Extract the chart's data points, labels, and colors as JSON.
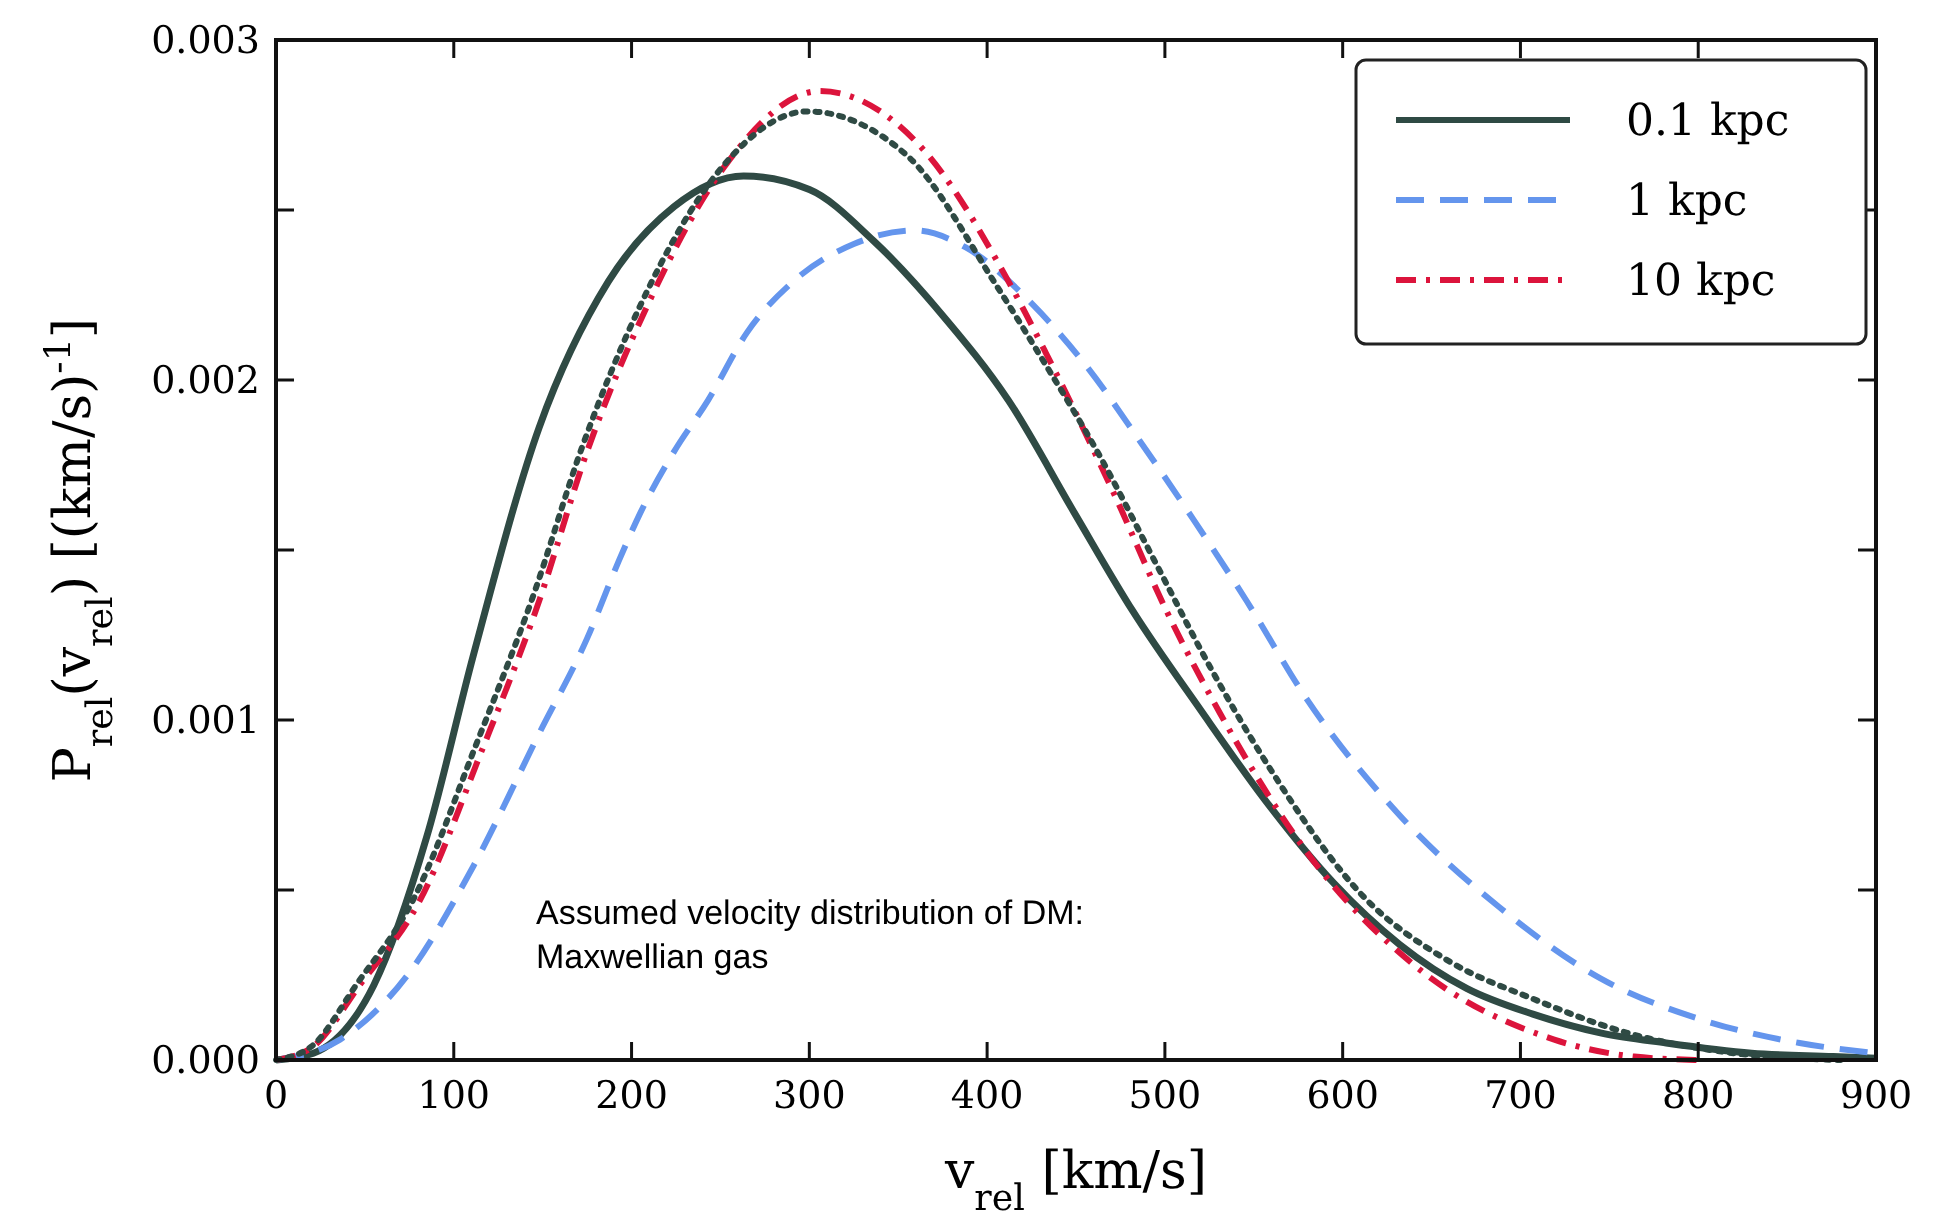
{
  "chart_data": {
    "type": "line",
    "xlabel": "v$_{rel}$ [km/s]",
    "ylabel": "P$_{rel}$(v$_{rel}$) [(km/s)$^{-1}$]",
    "xlim": [
      0,
      900
    ],
    "ylim": [
      0,
      0.003
    ],
    "xticks": [
      0,
      100,
      200,
      300,
      400,
      500,
      600,
      700,
      800,
      900
    ],
    "yticks": [
      {
        "value": 0,
        "label": "0.000"
      },
      {
        "value": 0.0005,
        "label": null
      },
      {
        "value": 0.001,
        "label": "0.001"
      },
      {
        "value": 0.0015,
        "label": null
      },
      {
        "value": 0.002,
        "label": "0.002"
      },
      {
        "value": 0.0025,
        "label": null
      },
      {
        "value": 0.003,
        "label": "0.003"
      }
    ],
    "grid": false,
    "legend": "top right",
    "marker": "none",
    "annotations": [
      "Assumed velocity distribution of DM:\nMaxwellian gas"
    ],
    "series": [
      {
        "name": "0.1 kpc",
        "color": "#2f4a44",
        "line_style": "solid",
        "x": [
          0,
          21,
          55,
          85,
          111,
          148,
          187,
          224,
          263,
          300,
          336,
          375,
          412,
          449,
          482,
          520,
          557,
          595,
          632,
          670,
          707,
          745,
          782,
          830,
          876,
          900
        ],
        "values": [
          0,
          2e-05,
          0.00022,
          0.00066,
          0.00119,
          0.00186,
          0.00229,
          0.00251,
          0.0026,
          0.00256,
          0.00241,
          0.00219,
          0.00194,
          0.00161,
          0.00132,
          0.00103,
          0.00076,
          0.00052,
          0.00034,
          0.00021,
          0.000135,
          8e-05,
          5e-05,
          2e-05,
          1e-05,
          5e-06
        ]
      },
      {
        "name": "1 kpc",
        "color": "#6495ed",
        "line_style": "dashed",
        "x": [
          0,
          36,
          74,
          111,
          148,
          175,
          193,
          205,
          224,
          243,
          265,
          291,
          325,
          359,
          388,
          426,
          456,
          486,
          516,
          546,
          580,
          632,
          688,
          745,
          801,
          857,
          900
        ],
        "values": [
          0,
          6e-05,
          0.00025,
          0.00057,
          0.00096,
          0.00124,
          0.00147,
          0.00161,
          0.00179,
          0.00194,
          0.00214,
          0.00229,
          0.0024,
          0.00244,
          0.00239,
          0.00222,
          0.00204,
          0.00182,
          0.00159,
          0.00135,
          0.00106,
          0.00072,
          0.00045,
          0.00024,
          0.00012,
          5e-05,
          2e-05
        ]
      },
      {
        "name": "10 kpc",
        "color": "#dc143c",
        "line_style": "dashdot",
        "x": [
          0,
          21,
          47,
          81,
          115,
          148,
          175,
          209,
          254,
          306,
          362,
          412,
          433,
          471,
          501,
          531,
          580,
          640,
          719,
          764,
          800
        ],
        "values": [
          0,
          4e-05,
          0.00022,
          0.00047,
          0.0009,
          0.00135,
          0.00179,
          0.00222,
          0.00264,
          0.00285,
          0.00269,
          0.00229,
          0.00208,
          0.00167,
          0.00132,
          0.00102,
          0.00061,
          0.00028,
          6e-05,
          1e-05,
          0
        ]
      },
      {
        "color": "#2f4a44",
        "line_style": "dotted",
        "x": [
          0,
          20,
          45,
          78,
          112,
          145,
          172,
          205,
          250,
          299,
          355,
          405,
          430,
          463,
          495,
          525,
          560,
          610,
          660,
          707,
          760,
          820,
          880
        ],
        "values": [
          0,
          4e-05,
          0.00022,
          0.00048,
          0.00092,
          0.00137,
          0.0018,
          0.00222,
          0.00262,
          0.00279,
          0.00266,
          0.00228,
          0.00207,
          0.00178,
          0.00146,
          0.00116,
          0.00085,
          0.00049,
          0.00029,
          0.00018,
          8e-05,
          2e-05,
          0
        ]
      }
    ]
  }
}
